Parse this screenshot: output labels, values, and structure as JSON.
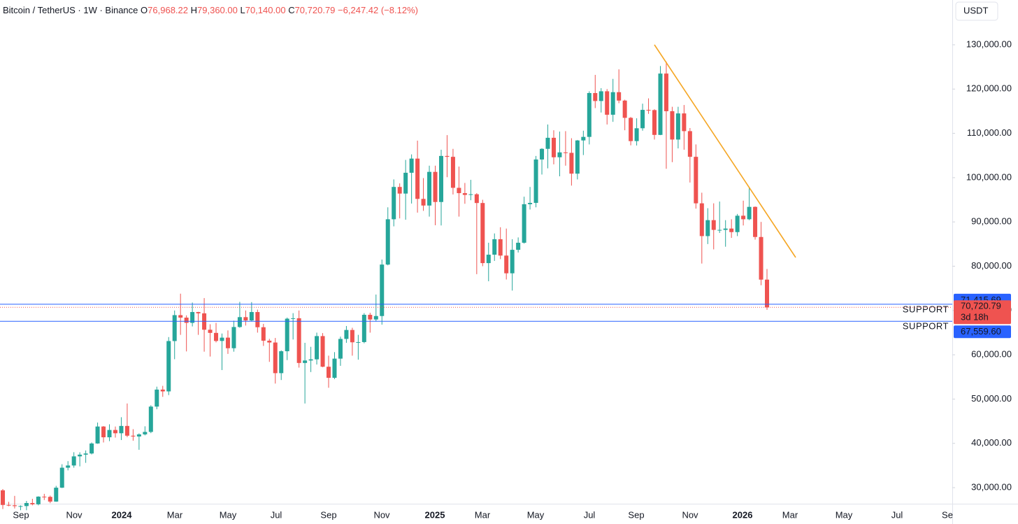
{
  "chart_data": {
    "type": "candlestick",
    "title": "Bitcoin / TetherUS · 1W · Binance",
    "header_fields": [
      {
        "key": "O",
        "value": "76,968.22"
      },
      {
        "key": "H",
        "value": "79,360.00"
      },
      {
        "key": "L",
        "value": "70,140.00"
      },
      {
        "key": "C",
        "value": "70,720.79"
      }
    ],
    "change": "−6,247.42 (−8.12%)",
    "currency": "USDT",
    "up_color": "#26a69a",
    "down_color": "#ef5350",
    "ylim": [
      26370,
      140110
    ],
    "yticks": [
      {
        "value": 30000,
        "label": "30,000.00"
      },
      {
        "value": 40000,
        "label": "40,000.00"
      },
      {
        "value": 50000,
        "label": "50,000.00"
      },
      {
        "value": 60000,
        "label": "60,000.00"
      },
      {
        "value": 70000,
        "label": "70,000.00"
      },
      {
        "value": 80000,
        "label": "80,000.00"
      },
      {
        "value": 90000,
        "label": "90,000.00"
      },
      {
        "value": 100000,
        "label": "100,000.00"
      },
      {
        "value": 110000,
        "label": "110,000.00"
      },
      {
        "value": 120000,
        "label": "120,000.00"
      },
      {
        "value": 130000,
        "label": "130,000.00"
      }
    ],
    "time_labels": [
      "Sep",
      "Nov",
      "2024",
      "Mar",
      "May",
      "Jul",
      "Sep",
      "Nov",
      "2025",
      "Mar",
      "May",
      "Jul",
      "Sep",
      "Nov",
      "2026",
      "Mar",
      "May",
      "Jul",
      "Se"
    ],
    "levels": [
      {
        "name": "SUPPORT",
        "value": 71415.69,
        "label": "71,415.69",
        "color": "#2962ff"
      },
      {
        "name": "SUPPORT",
        "value": 67559.6,
        "label": "67,559.60",
        "color": "#2962ff"
      }
    ],
    "last_price": {
      "label": "70,720.79",
      "countdown": "3d 18h",
      "color": "#ef5350"
    },
    "ohlc": [
      [
        29400,
        29680,
        25166,
        26090
      ],
      [
        26090,
        26800,
        25800,
        26010
      ],
      [
        26010,
        28140,
        25300,
        25830
      ],
      [
        25830,
        26000,
        24900,
        25840
      ],
      [
        25840,
        27000,
        24900,
        26530
      ],
      [
        26530,
        27480,
        26000,
        26240
      ],
      [
        26240,
        28050,
        26000,
        27970
      ],
      [
        27970,
        28600,
        27200,
        27920
      ],
      [
        27920,
        28200,
        26500,
        26850
      ],
      [
        26850,
        30400,
        26800,
        29990
      ],
      [
        29990,
        35280,
        29900,
        34500
      ],
      [
        34500,
        35980,
        33900,
        35000
      ],
      [
        35000,
        38000,
        34500,
        37060
      ],
      [
        37060,
        37980,
        34800,
        37450
      ],
      [
        37450,
        38400,
        35600,
        37710
      ],
      [
        37710,
        40200,
        37500,
        39970
      ],
      [
        39970,
        44700,
        39900,
        43800
      ],
      [
        43800,
        43900,
        40200,
        41370
      ],
      [
        41370,
        44300,
        40500,
        43020
      ],
      [
        43020,
        43800,
        41300,
        42280
      ],
      [
        42280,
        45900,
        40750,
        43930
      ],
      [
        43930,
        49000,
        41400,
        41730
      ],
      [
        41730,
        43200,
        40600,
        41550
      ],
      [
        41550,
        42250,
        38550,
        42030
      ],
      [
        42030,
        43850,
        41800,
        42580
      ],
      [
        42580,
        48600,
        42300,
        48300
      ],
      [
        48300,
        52800,
        47700,
        52140
      ],
      [
        52140,
        52980,
        50500,
        51730
      ],
      [
        51730,
        64000,
        50900,
        63100
      ],
      [
        63100,
        70000,
        59000,
        68950
      ],
      [
        68950,
        73800,
        64500,
        68390
      ],
      [
        68390,
        68900,
        60760,
        67210
      ],
      [
        67210,
        71800,
        66400,
        69650
      ],
      [
        69650,
        69700,
        64500,
        69360
      ],
      [
        69360,
        72800,
        60700,
        65660
      ],
      [
        65660,
        66900,
        59600,
        64940
      ],
      [
        64940,
        67200,
        62800,
        63120
      ],
      [
        63120,
        64800,
        56550,
        63870
      ],
      [
        63870,
        65500,
        60200,
        61480
      ],
      [
        61480,
        67700,
        60700,
        66270
      ],
      [
        66270,
        71950,
        66100,
        68500
      ],
      [
        68500,
        70000,
        66600,
        67750
      ],
      [
        67750,
        71900,
        67600,
        69650
      ],
      [
        69650,
        70200,
        65000,
        66220
      ],
      [
        66220,
        66980,
        62000,
        63180
      ],
      [
        63180,
        63600,
        58400,
        62770
      ],
      [
        62770,
        63800,
        53500,
        55850
      ],
      [
        55850,
        61000,
        54300,
        60800
      ],
      [
        60800,
        68400,
        58800,
        68150
      ],
      [
        68150,
        69400,
        63450,
        68250
      ],
      [
        68250,
        70000,
        57100,
        58150
      ],
      [
        58150,
        62700,
        49000,
        58710
      ],
      [
        58710,
        61800,
        56100,
        58970
      ],
      [
        58970,
        65000,
        57800,
        64220
      ],
      [
        64220,
        64900,
        57200,
        57300
      ],
      [
        57300,
        59800,
        52550,
        54800
      ],
      [
        54800,
        60600,
        54500,
        59130
      ],
      [
        59130,
        64100,
        57500,
        63580
      ],
      [
        63580,
        66500,
        62700,
        65600
      ],
      [
        65600,
        66100,
        59800,
        62820
      ],
      [
        62820,
        64500,
        58900,
        62870
      ],
      [
        62870,
        69400,
        62600,
        69030
      ],
      [
        69030,
        69500,
        65000,
        67970
      ],
      [
        67970,
        73600,
        67500,
        68750
      ],
      [
        68750,
        81500,
        66800,
        80370
      ],
      [
        80370,
        93300,
        80200,
        90600
      ],
      [
        90600,
        99600,
        89000,
        97900
      ],
      [
        97900,
        98700,
        90800,
        96400
      ],
      [
        96400,
        104000,
        90500,
        101100
      ],
      [
        101100,
        105250,
        94150,
        104300
      ],
      [
        104300,
        108350,
        92100,
        95200
      ],
      [
        95200,
        99900,
        92500,
        93700
      ],
      [
        93700,
        102700,
        91200,
        101300
      ],
      [
        101300,
        102700,
        89250,
        94500
      ],
      [
        94500,
        106300,
        89200,
        104900
      ],
      [
        104900,
        109600,
        100100,
        104700
      ],
      [
        104700,
        106500,
        96200,
        97700
      ],
      [
        97700,
        102500,
        91200,
        96500
      ],
      [
        96500,
        98800,
        94100,
        96100
      ],
      [
        96100,
        99500,
        94900,
        96250
      ],
      [
        96250,
        96500,
        78200,
        94270
      ],
      [
        94270,
        95000,
        80000,
        80700
      ],
      [
        80700,
        85300,
        76600,
        82600
      ],
      [
        82600,
        87400,
        81200,
        86100
      ],
      [
        86100,
        88800,
        81600,
        82400
      ],
      [
        82400,
        88500,
        77000,
        78400
      ],
      [
        78400,
        86100,
        74500,
        83700
      ],
      [
        83700,
        86500,
        83100,
        85300
      ],
      [
        85300,
        95700,
        85100,
        94000
      ],
      [
        94000,
        97900,
        92800,
        94300
      ],
      [
        94300,
        104900,
        93300,
        104100
      ],
      [
        104100,
        106650,
        100700,
        106500
      ],
      [
        106500,
        112000,
        102100,
        109000
      ],
      [
        109000,
        110700,
        103000,
        104600
      ],
      [
        104600,
        110400,
        100300,
        105700
      ],
      [
        105700,
        110500,
        102700,
        105600
      ],
      [
        105600,
        108900,
        98200,
        100900
      ],
      [
        100900,
        108500,
        99600,
        108400
      ],
      [
        108400,
        110600,
        105100,
        109200
      ],
      [
        109200,
        119500,
        107500,
        119100
      ],
      [
        119100,
        123200,
        115700,
        117300
      ],
      [
        117300,
        120200,
        114700,
        119500
      ],
      [
        119500,
        120000,
        112000,
        114200
      ],
      [
        114200,
        122300,
        112600,
        119300
      ],
      [
        119300,
        124450,
        116800,
        117400
      ],
      [
        117400,
        117600,
        110700,
        113500
      ],
      [
        113500,
        113700,
        107300,
        108250
      ],
      [
        108250,
        113400,
        107250,
        111150
      ],
      [
        111150,
        116700,
        110600,
        115300
      ],
      [
        115300,
        117900,
        114400,
        115250
      ],
      [
        115250,
        115450,
        108600,
        109650
      ],
      [
        109650,
        125200,
        109600,
        123500
      ],
      [
        123500,
        126200,
        102000,
        115000
      ],
      [
        115000,
        116000,
        103500,
        108600
      ],
      [
        108600,
        116000,
        106600,
        114500
      ],
      [
        114500,
        116400,
        106300,
        110500
      ],
      [
        110500,
        111200,
        98900,
        104700
      ],
      [
        104700,
        107500,
        93000,
        94200
      ],
      [
        94200,
        96600,
        80600,
        86800
      ],
      [
        86800,
        93100,
        85000,
        90400
      ],
      [
        90400,
        94200,
        83800,
        88200
      ],
      [
        88200,
        94600,
        87500,
        88200
      ],
      [
        88200,
        90400,
        84400,
        88500
      ],
      [
        88500,
        90600,
        86400,
        87700
      ],
      [
        87700,
        91800,
        86800,
        91400
      ],
      [
        91400,
        94800,
        89200,
        90600
      ],
      [
        90600,
        97900,
        90400,
        93400
      ],
      [
        93400,
        93500,
        86000,
        86600
      ],
      [
        86600,
        90000,
        75700,
        76968.22
      ],
      [
        76968.22,
        79360,
        70140,
        70720.79
      ]
    ]
  }
}
